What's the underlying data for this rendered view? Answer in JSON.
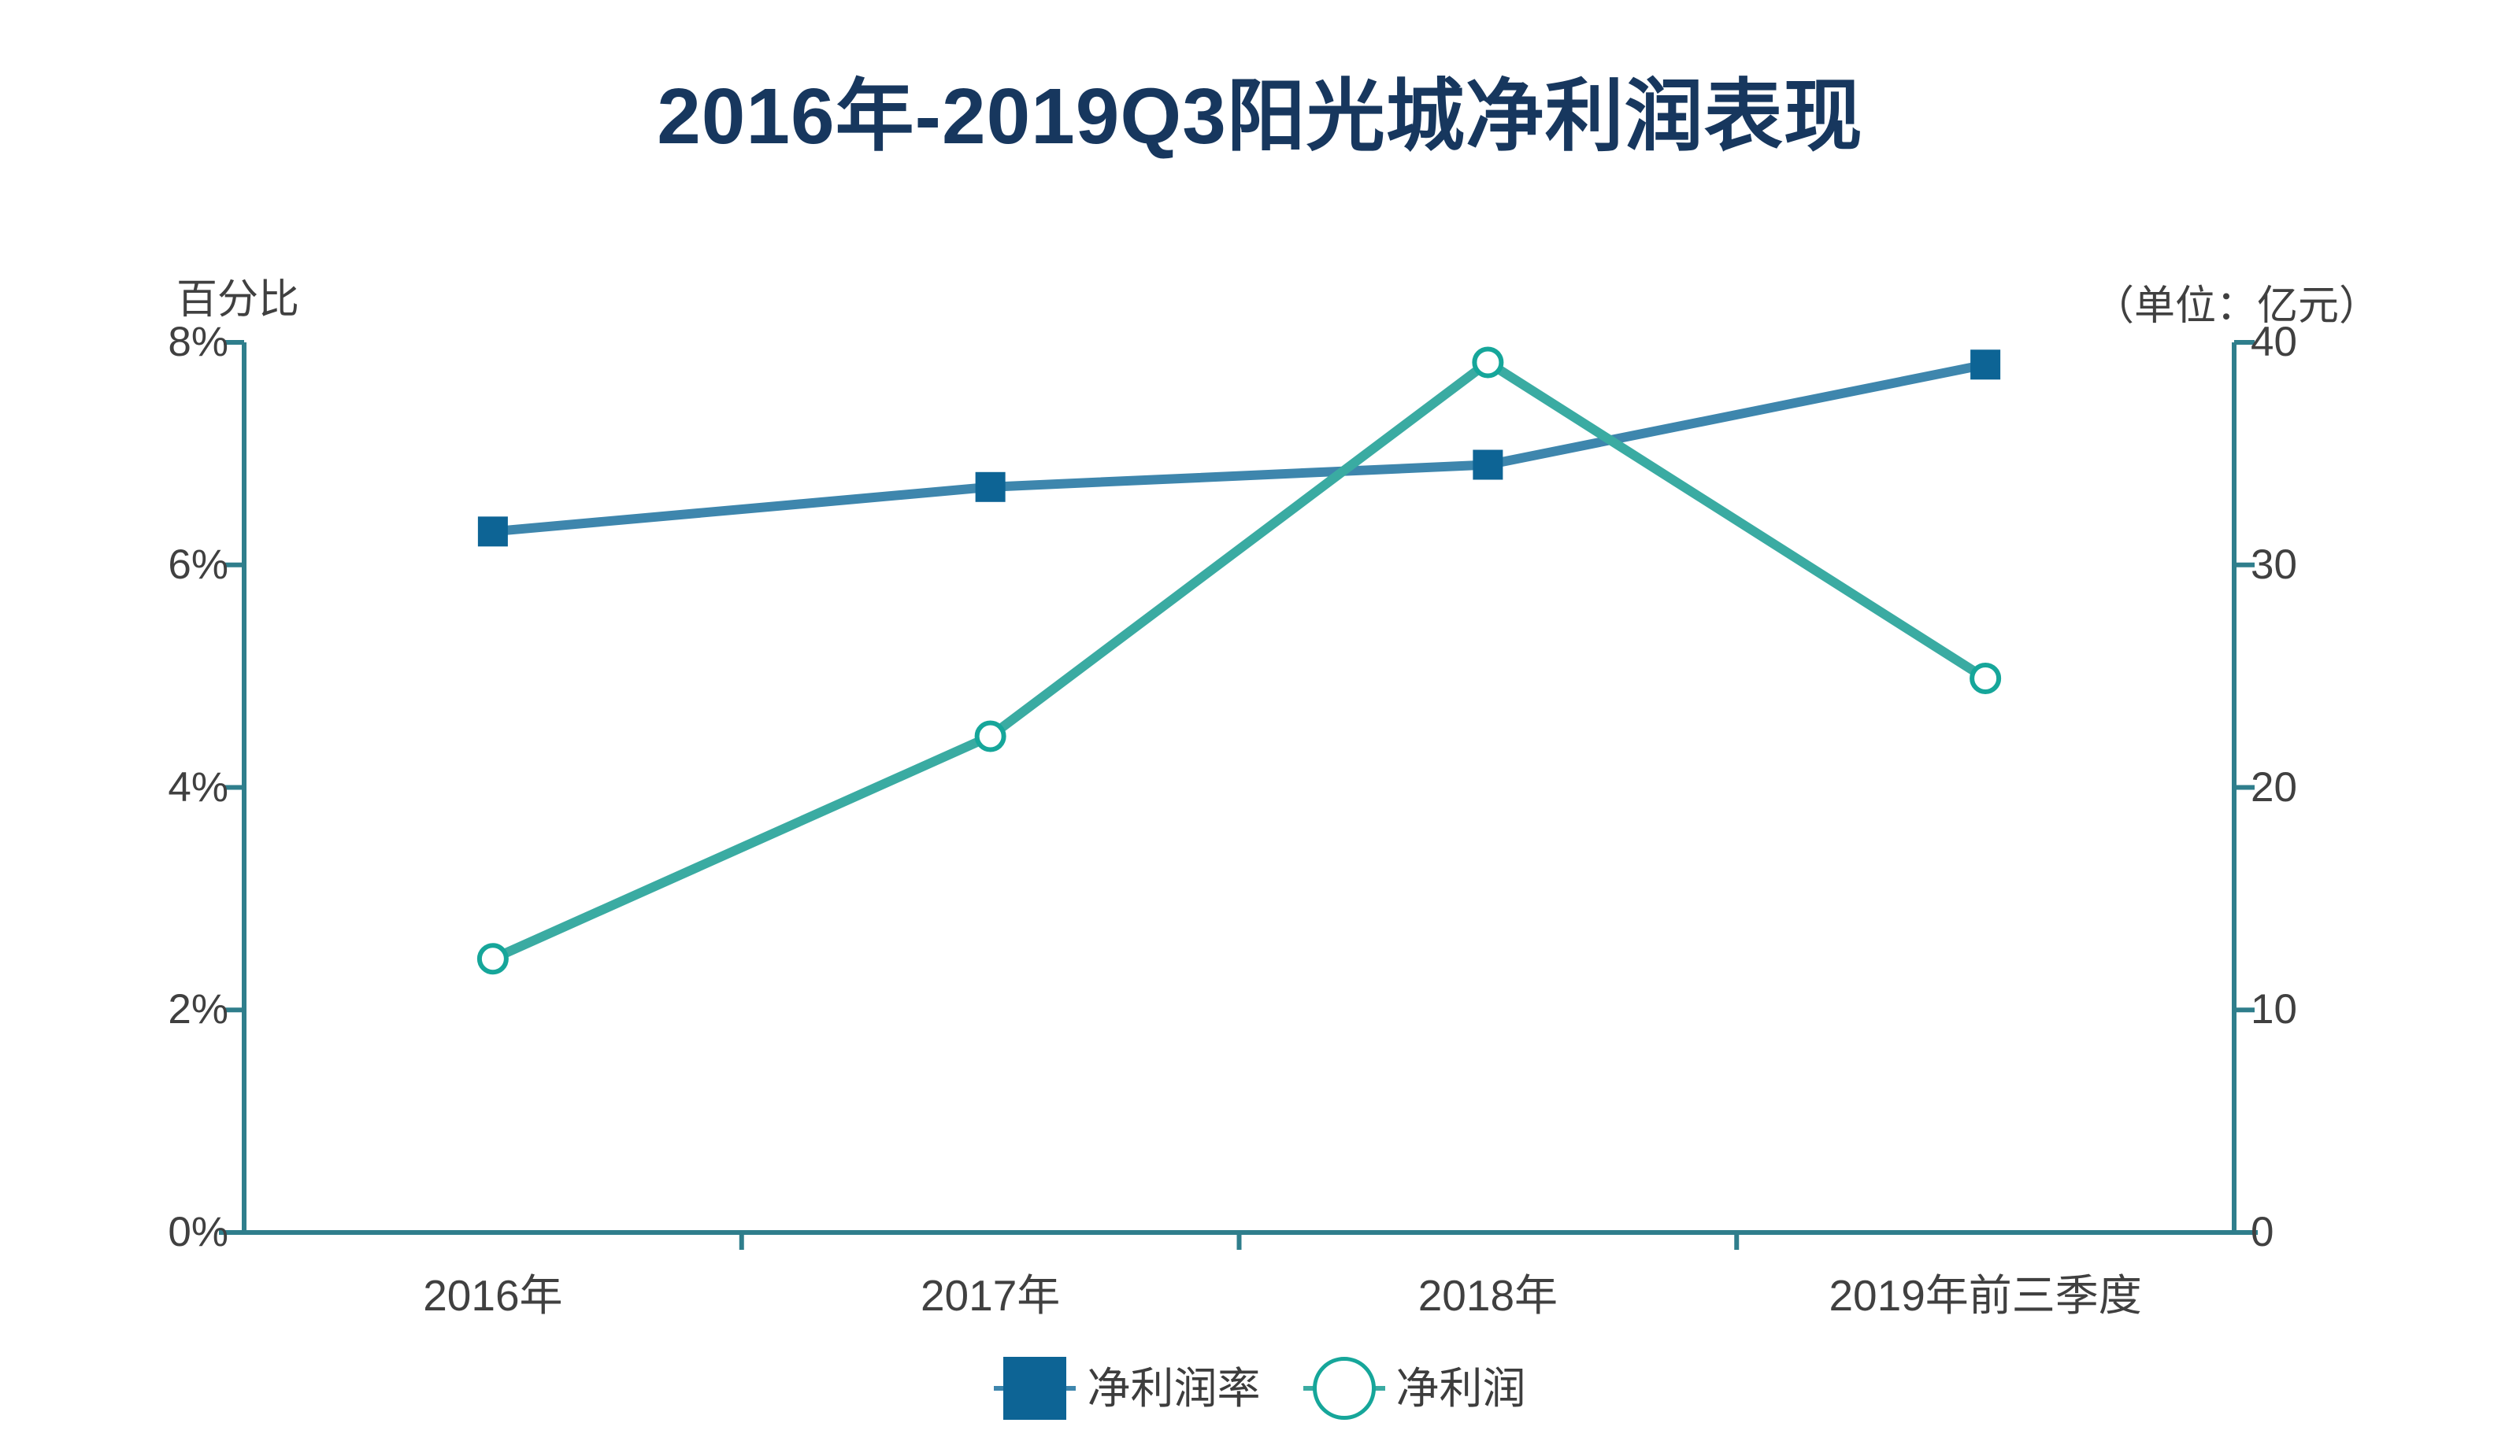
{
  "title": "2016年-2019Q3阳光城净利润表现",
  "left_axis": {
    "label": "百分比",
    "ticks": [
      "8%",
      "6%",
      "4%",
      "2%",
      "0%"
    ]
  },
  "right_axis": {
    "label": "（单位：亿元）",
    "ticks": [
      "40",
      "30",
      "20",
      "10",
      "0"
    ]
  },
  "x_axis": {
    "categories": [
      "2016年",
      "2017年",
      "2018年",
      "2019年前三季度"
    ]
  },
  "legend": {
    "items": [
      {
        "label": "净利润率",
        "marker": "square"
      },
      {
        "label": "净利润",
        "marker": "circle"
      }
    ]
  },
  "colors": {
    "title_text": "#17375e",
    "axis_line": "#2f7e8c",
    "axis_text": "#404040",
    "legend_text": "#3d3d3d",
    "margin_line": "#3e86ad",
    "margin_marker": "#0d6495",
    "profit_line": "#3aaba2",
    "profit_marker_stroke": "#16a69a",
    "marker_fill": "#ffffff"
  },
  "chart_data": {
    "type": "line",
    "title": "2016年-2019Q3阳光城净利润表现",
    "categories": [
      "2016年",
      "2017年",
      "2018年",
      "2019年前三季度"
    ],
    "series": [
      {
        "name": "净利润率",
        "axis": "left",
        "unit": "%",
        "marker": "square",
        "line_color": "#3e86ad",
        "marker_color": "#0d6495",
        "values": [
          6.3,
          6.7,
          6.9,
          7.8
        ]
      },
      {
        "name": "净利润",
        "axis": "right",
        "unit": "亿元",
        "marker": "circle",
        "line_color": "#3aaba2",
        "marker_color": "#16a69a",
        "values": [
          12.3,
          22.3,
          39.1,
          24.9
        ]
      }
    ],
    "left_axis_label": "百分比",
    "right_axis_label": "（单位：亿元）",
    "left_ylim": [
      0,
      8
    ],
    "right_ylim": [
      0,
      40
    ],
    "grid": false,
    "legend_position": "bottom"
  }
}
